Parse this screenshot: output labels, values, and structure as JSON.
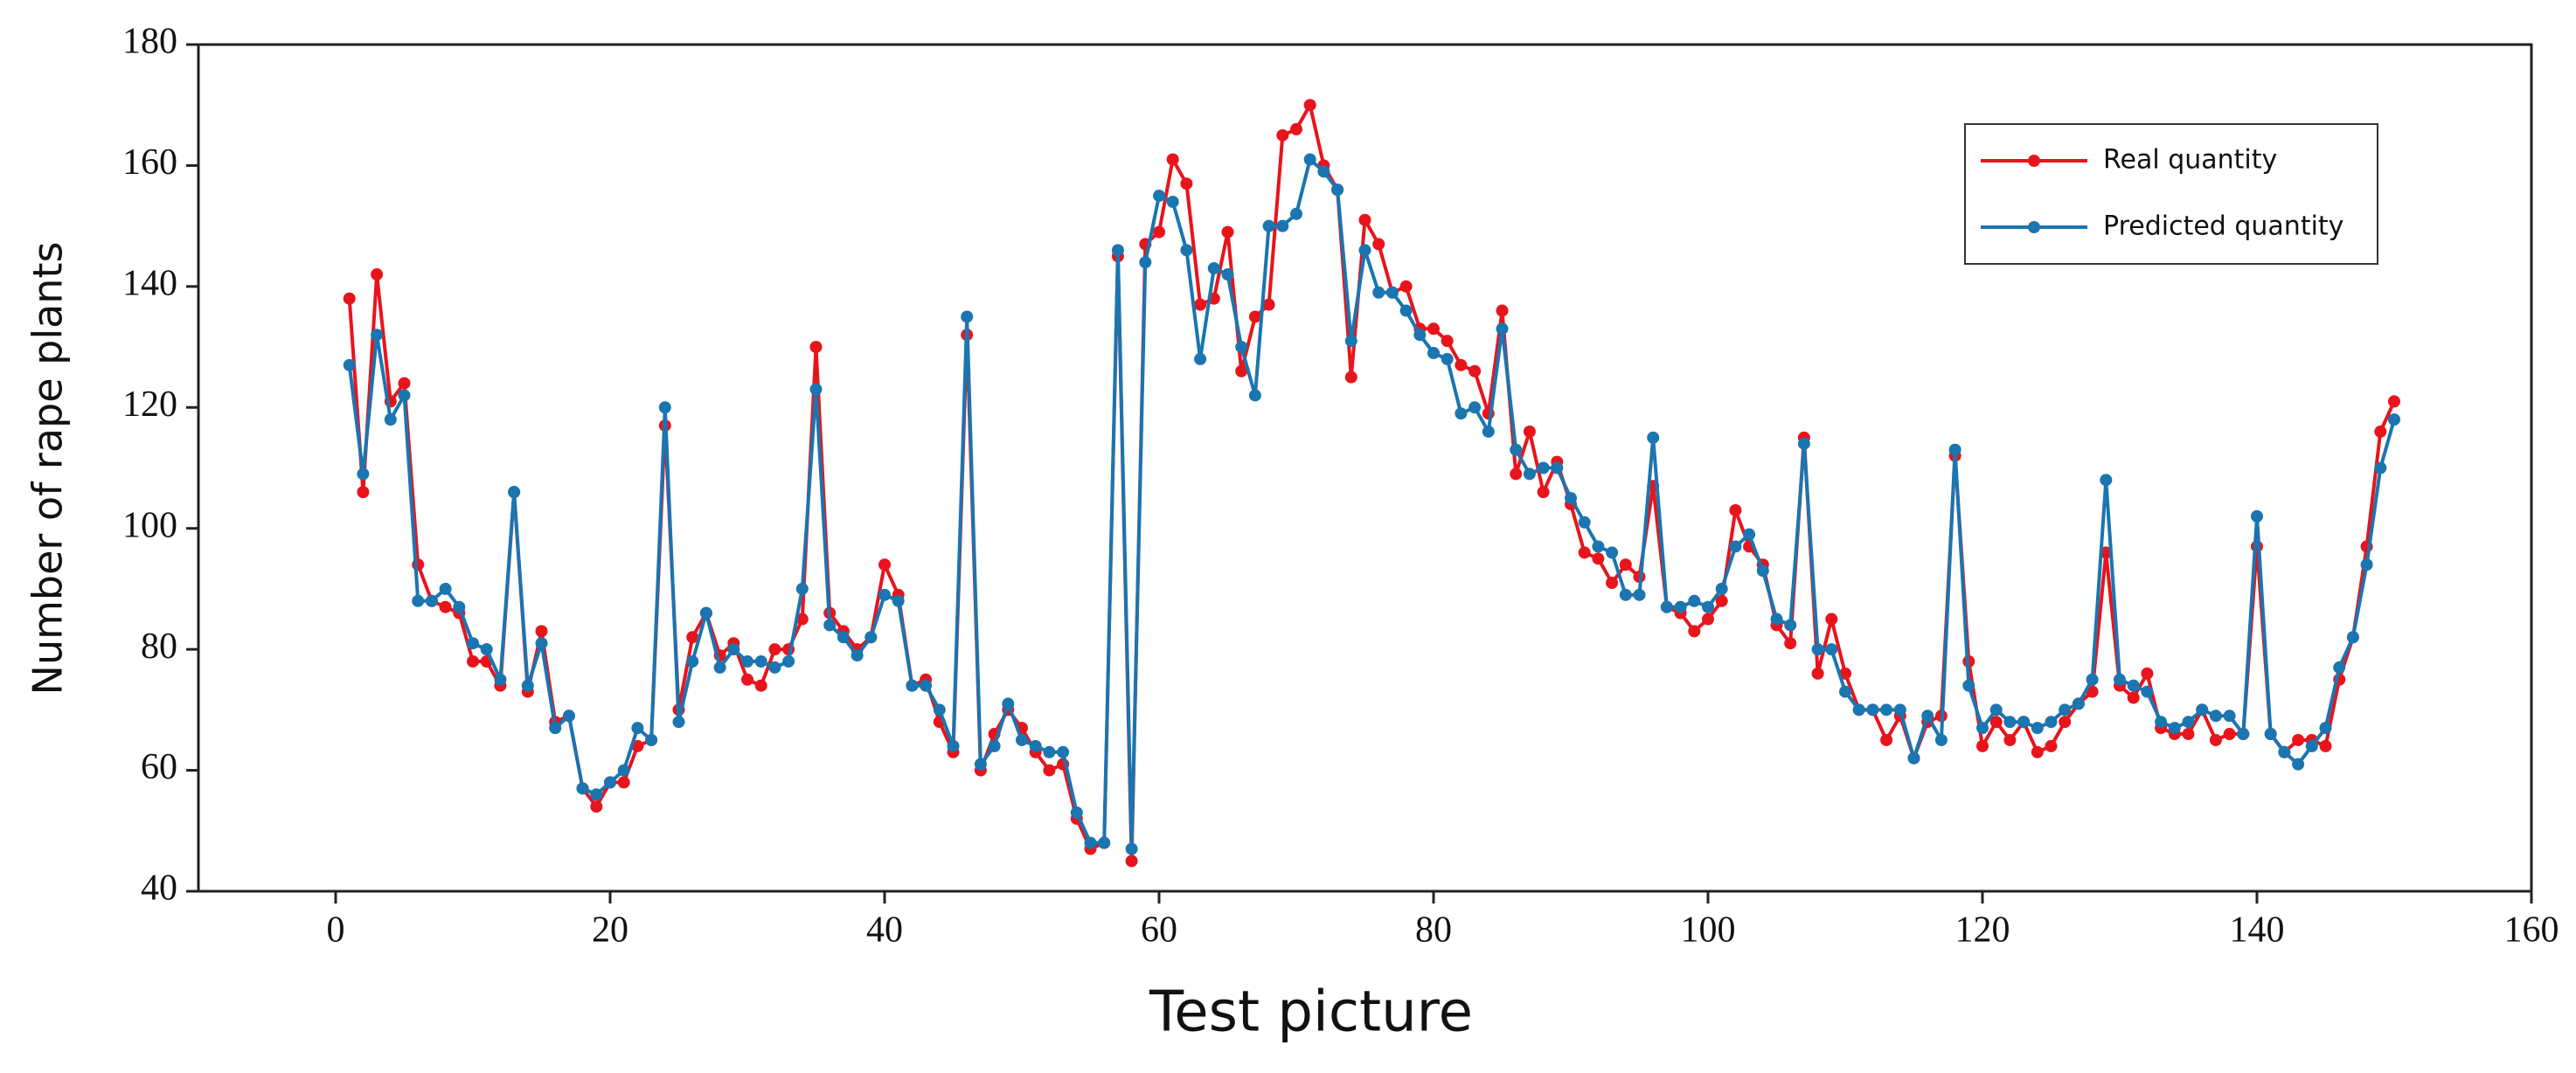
{
  "chart_data": {
    "type": "line",
    "xlabel": "Test picture",
    "ylabel": "Number of rape plants",
    "x": [
      1,
      2,
      3,
      4,
      5,
      6,
      7,
      8,
      9,
      10,
      11,
      12,
      13,
      14,
      15,
      16,
      17,
      18,
      19,
      20,
      21,
      22,
      23,
      24,
      25,
      26,
      27,
      28,
      29,
      30,
      31,
      32,
      33,
      34,
      35,
      36,
      37,
      38,
      39,
      40,
      41,
      42,
      43,
      44,
      45,
      46,
      47,
      48,
      49,
      50,
      51,
      52,
      53,
      54,
      55,
      56,
      57,
      58,
      59,
      60,
      61,
      62,
      63,
      64,
      65,
      66,
      67,
      68,
      69,
      70,
      71,
      72,
      73,
      74,
      75,
      76,
      77,
      78,
      79,
      80,
      81,
      82,
      83,
      84,
      85,
      86,
      87,
      88,
      89,
      90,
      91,
      92,
      93,
      94,
      95,
      96,
      97,
      98,
      99,
      100,
      101,
      102,
      103,
      104,
      105,
      106,
      107,
      108,
      109,
      110,
      111,
      112,
      113,
      114,
      115,
      116,
      117,
      118,
      119,
      120,
      121,
      122,
      123,
      124,
      125,
      126,
      127,
      128,
      129,
      130,
      131,
      132,
      133,
      134,
      135,
      136,
      137,
      138,
      139,
      140,
      141,
      142,
      143,
      144,
      145,
      146,
      147,
      148,
      149,
      150
    ],
    "series": [
      {
        "name": "Real quantity",
        "color": "#e8141c",
        "values": [
          138,
          106,
          142,
          121,
          124,
          94,
          88,
          87,
          86,
          78,
          78,
          74,
          106,
          73,
          83,
          68,
          69,
          57,
          54,
          58,
          58,
          64,
          65,
          117,
          70,
          82,
          86,
          79,
          81,
          75,
          74,
          80,
          80,
          85,
          130,
          86,
          83,
          80,
          82,
          94,
          89,
          74,
          75,
          68,
          63,
          132,
          60,
          66,
          70,
          67,
          63,
          60,
          61,
          52,
          47,
          48,
          145,
          45,
          147,
          149,
          161,
          157,
          137,
          138,
          149,
          126,
          135,
          137,
          165,
          166,
          170,
          160,
          156,
          125,
          151,
          147,
          139,
          140,
          133,
          133,
          131,
          127,
          126,
          119,
          136,
          109,
          116,
          106,
          111,
          104,
          96,
          95,
          91,
          94,
          92,
          107,
          87,
          86,
          83,
          85,
          88,
          103,
          97,
          94,
          84,
          81,
          115,
          76,
          85,
          76,
          70,
          70,
          65,
          69,
          62,
          68,
          69,
          112,
          78,
          64,
          68,
          65,
          68,
          63,
          64,
          68,
          71,
          73,
          96,
          74,
          72,
          76,
          67,
          66,
          66,
          70,
          65,
          66,
          66,
          97,
          66,
          63,
          65,
          65,
          64,
          75,
          82,
          97,
          116,
          121
        ]
      },
      {
        "name": "Predicted quantity",
        "color": "#1a75b0",
        "values": [
          127,
          109,
          132,
          118,
          122,
          88,
          88,
          90,
          87,
          81,
          80,
          75,
          106,
          74,
          81,
          67,
          69,
          57,
          56,
          58,
          60,
          67,
          65,
          120,
          68,
          78,
          86,
          77,
          80,
          78,
          78,
          77,
          78,
          90,
          123,
          84,
          82,
          79,
          82,
          89,
          88,
          74,
          74,
          70,
          64,
          135,
          61,
          64,
          71,
          65,
          64,
          63,
          63,
          53,
          48,
          48,
          146,
          47,
          144,
          155,
          154,
          146,
          128,
          143,
          142,
          130,
          122,
          150,
          150,
          152,
          161,
          159,
          156,
          131,
          146,
          139,
          139,
          136,
          132,
          129,
          128,
          119,
          120,
          116,
          133,
          113,
          109,
          110,
          110,
          105,
          101,
          97,
          96,
          89,
          89,
          115,
          87,
          87,
          88,
          87,
          90,
          97,
          99,
          93,
          85,
          84,
          114,
          80,
          80,
          73,
          70,
          70,
          70,
          70,
          62,
          69,
          65,
          113,
          74,
          67,
          70,
          68,
          68,
          67,
          68,
          70,
          71,
          75,
          108,
          75,
          74,
          73,
          68,
          67,
          68,
          70,
          69,
          69,
          66,
          102,
          66,
          63,
          61,
          64,
          67,
          77,
          82,
          94,
          110,
          118
        ]
      }
    ],
    "xlim": [
      -10,
      160
    ],
    "xticks": [
      0,
      20,
      40,
      60,
      80,
      100,
      120,
      140,
      160
    ],
    "ylim": [
      40,
      180
    ],
    "yticks": [
      40,
      60,
      80,
      100,
      120,
      140,
      160,
      180
    ],
    "legend": "upper right"
  }
}
